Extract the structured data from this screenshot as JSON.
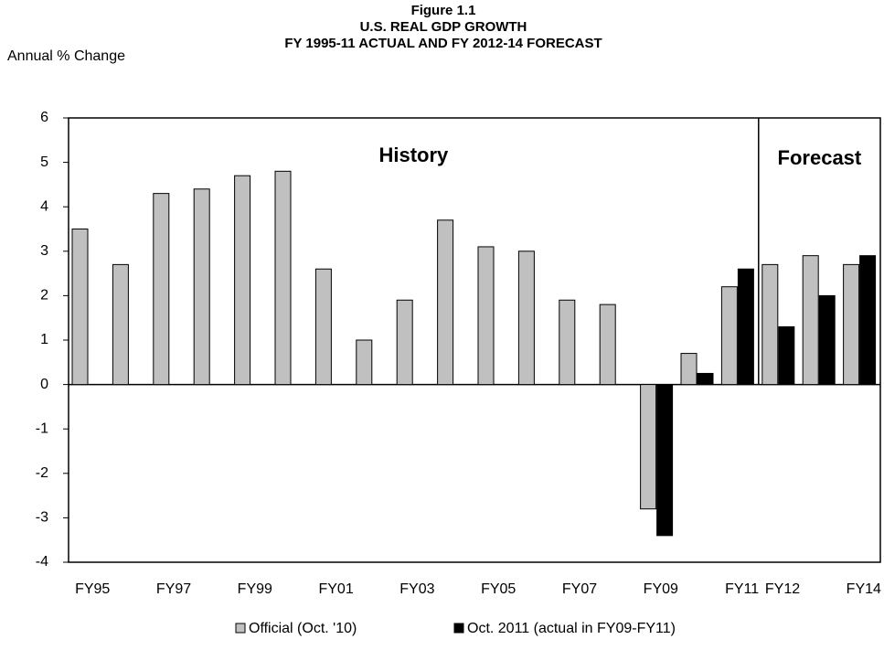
{
  "chart_data": {
    "type": "bar",
    "title": [
      "Figure 1.1",
      "U.S. REAL GDP GROWTH",
      "FY 1995-11 ACTUAL AND FY 2012-14 FORECAST"
    ],
    "y_label": "Annual % Change",
    "annotations": [
      "History",
      "Forecast"
    ],
    "categories": [
      "FY95",
      null,
      "FY97",
      null,
      "FY99",
      null,
      "FY01",
      null,
      "FY03",
      null,
      "FY05",
      null,
      "FY07",
      null,
      "FY09",
      null,
      "FY11",
      "FY12",
      null,
      "FY14"
    ],
    "series": [
      {
        "name": "Official (Oct. '10)",
        "color": "#c0c0c0",
        "values": [
          3.5,
          2.7,
          4.3,
          4.4,
          4.7,
          4.8,
          2.6,
          1.0,
          1.9,
          3.7,
          3.1,
          3.0,
          1.9,
          1.8,
          -2.8,
          0.7,
          2.2,
          2.7,
          2.9,
          2.7
        ]
      },
      {
        "name": "Oct. 2011 (actual in FY09-FY11)",
        "color": "#000000",
        "values": [
          null,
          null,
          null,
          null,
          null,
          null,
          null,
          null,
          null,
          null,
          null,
          null,
          null,
          null,
          -3.4,
          0.25,
          2.6,
          1.3,
          2.0,
          2.9
        ]
      }
    ],
    "ylim": [
      -4,
      6
    ],
    "yticks": [
      -4,
      -3,
      -2,
      -1,
      0,
      1,
      2,
      3,
      4,
      5,
      6
    ],
    "grid": false
  }
}
